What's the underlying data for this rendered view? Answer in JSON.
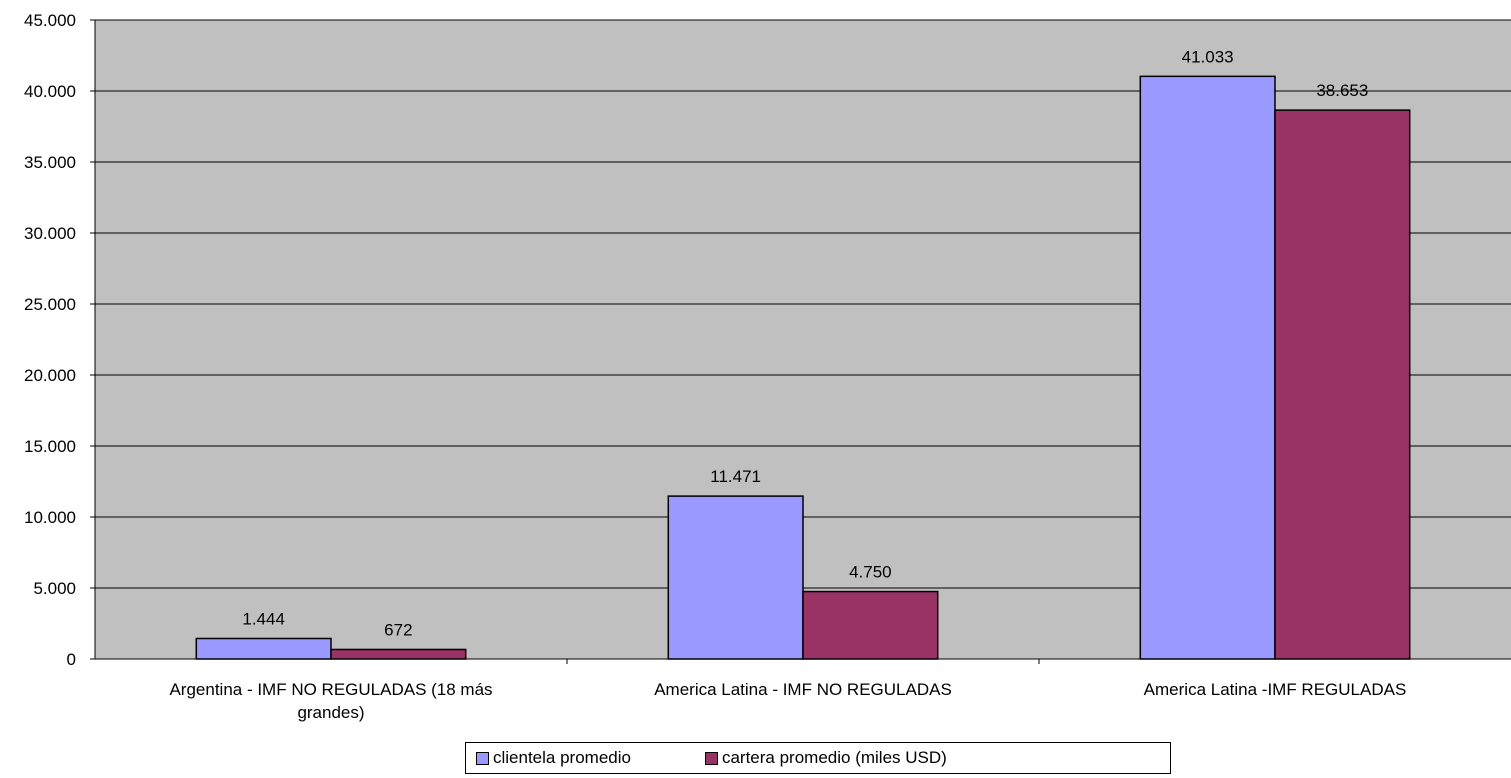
{
  "chart_data": {
    "type": "bar",
    "title": "",
    "xlabel": "",
    "ylabel": "",
    "categories": [
      [
        "Argentina - IMF NO REGULADAS (18 más",
        "grandes)"
      ],
      [
        "America Latina - IMF NO REGULADAS"
      ],
      [
        "America Latina -IMF REGULADAS"
      ]
    ],
    "series": [
      {
        "name": "clientela promedio",
        "color": "#9999FF",
        "values": [
          1444,
          11471,
          41033
        ],
        "labels": [
          "1.444",
          "11.471",
          "41.033"
        ]
      },
      {
        "name": "cartera promedio (miles USD)",
        "color": "#993366",
        "values": [
          672,
          4750,
          38653
        ],
        "labels": [
          "672",
          "4.750",
          "38.653"
        ]
      }
    ],
    "ylim": [
      0,
      45000
    ],
    "ytick_labels": [
      "0",
      "5.000",
      "10.000",
      "15.000",
      "20.000",
      "25.000",
      "30.000",
      "35.000",
      "40.000",
      "45.000"
    ],
    "grid": true,
    "plot_background": "#C0C0C0",
    "legend_position": "bottom"
  }
}
